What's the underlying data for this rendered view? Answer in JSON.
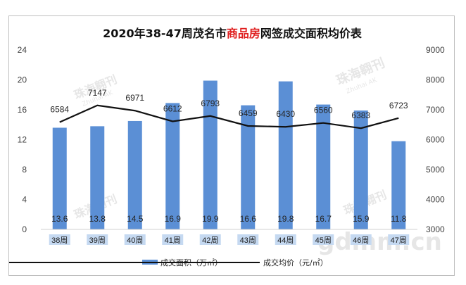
{
  "title": {
    "part1": "2020年38-47周茂名市",
    "part2": "商品房",
    "part3": "网签成交面积均价表",
    "highlight_color": "#e02020"
  },
  "watermarks": {
    "brand": "珠海翱刊",
    "brand_en": "Zhuhai AK",
    "site": "gdmm.cn"
  },
  "colors": {
    "bar": "#5b8fd5",
    "line": "#111111",
    "category_bg": "#c5d9f1"
  },
  "chart_data": {
    "type": "bar+line",
    "title": "2020年38-47周茂名市商品房网签成交面积均价表",
    "categories": [
      "38周",
      "39周",
      "40周",
      "41周",
      "42周",
      "43周",
      "44周",
      "45周",
      "46周",
      "47周"
    ],
    "series": [
      {
        "name": "成交面积（万㎡）",
        "type": "bar",
        "axis": "left",
        "values": [
          13.6,
          13.8,
          14.5,
          16.9,
          19.9,
          16.6,
          19.8,
          16.7,
          15.9,
          11.8
        ],
        "labels": [
          "13.6",
          "13.8",
          "14.5",
          "16.9",
          "19.9",
          "16.6",
          "19.8",
          "16.7",
          "15.9",
          "11.8"
        ]
      },
      {
        "name": "成交均价（元/㎡）",
        "type": "line",
        "axis": "right",
        "values": [
          6584,
          7147,
          6971,
          6612,
          6793,
          6459,
          6430,
          6560,
          6383,
          6723
        ],
        "labels": [
          "6584",
          "7147",
          "6971",
          "6612",
          "6793",
          "6459",
          "6430",
          "6560",
          "6383",
          "6723"
        ]
      }
    ],
    "y_left": {
      "min": 0,
      "max": 24,
      "ticks": [
        "0",
        "4",
        "8",
        "12",
        "16",
        "20",
        "24"
      ]
    },
    "y_right": {
      "min": 3000,
      "max": 9000,
      "ticks": [
        "3000",
        "4000",
        "5000",
        "6000",
        "7000",
        "8000",
        "9000"
      ]
    },
    "legend_position": "bottom",
    "grid": false
  }
}
